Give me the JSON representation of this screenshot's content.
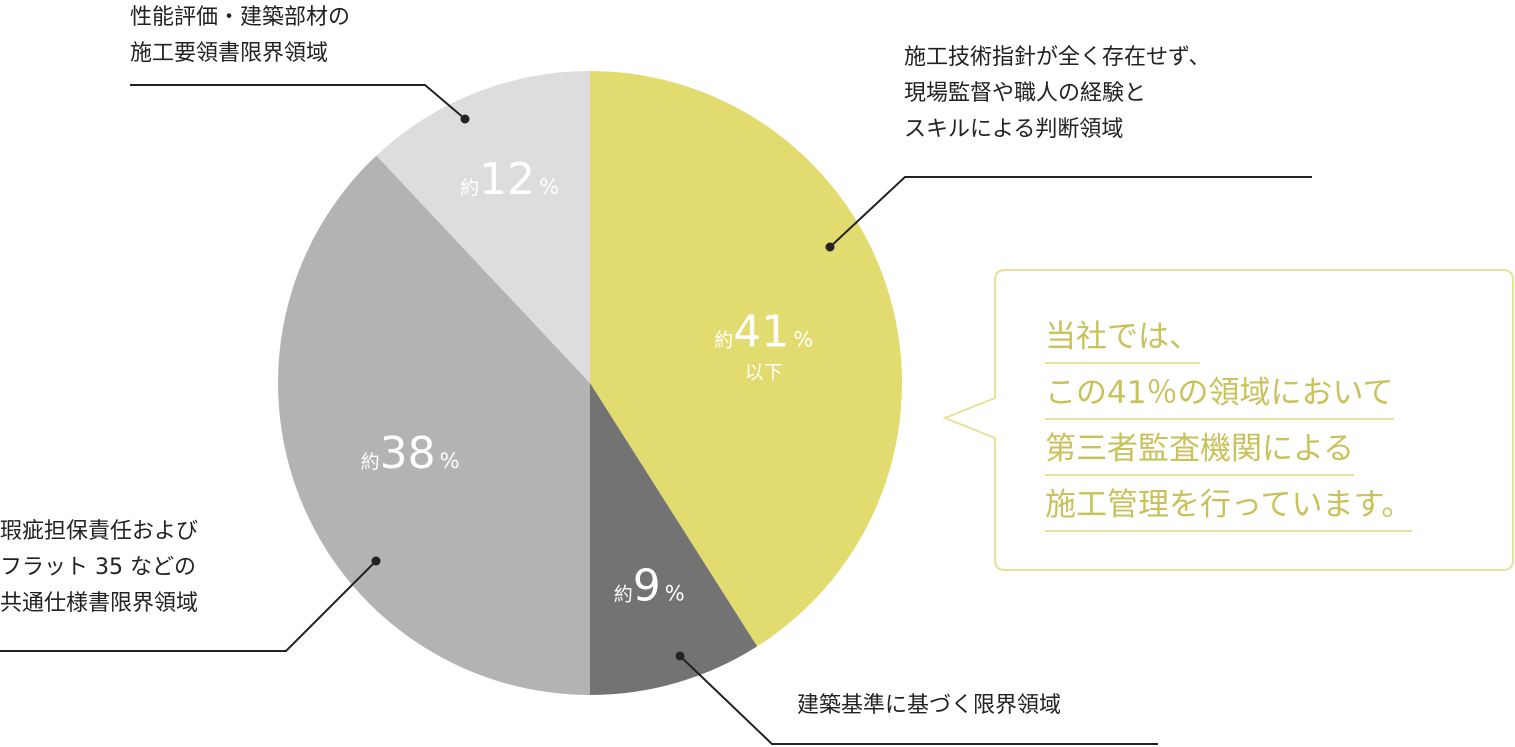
{
  "chart_data": {
    "type": "pie",
    "slices": [
      {
        "prefix": "約",
        "value": 41,
        "unit": "%",
        "sub": "以下",
        "color": "#e2dc70"
      },
      {
        "prefix": "約",
        "value": 9,
        "unit": "%",
        "sub": "",
        "color": "#737373"
      },
      {
        "prefix": "約",
        "value": 38,
        "unit": "%",
        "sub": "",
        "color": "#b3b3b3"
      },
      {
        "prefix": "約",
        "value": 12,
        "unit": "%",
        "sub": "",
        "color": "#dcdddc"
      }
    ],
    "start": "12 o'clock",
    "direction": "clockwise",
    "legend": "none"
  },
  "callouts": [
    {
      "lines": [
        "施工技術指針が全く存在せず、",
        "現場監督や職人の経験と",
        "スキルによる判断領域"
      ]
    },
    {
      "lines": [
        "建築基準に基づく限界領域"
      ]
    },
    {
      "lines": [
        "瑕疵担保責任および",
        "フラット 35 などの",
        "共通仕様書限界領域"
      ]
    },
    {
      "lines": [
        "性能評価・建築部材の",
        "施工要領書限界領域"
      ]
    }
  ],
  "note": {
    "lines": [
      "当社では、",
      "この41％の領域において",
      "第三者監査機関による",
      "施工管理を行っています。"
    ],
    "text_color": "#c9c25a",
    "border_color": "#e6e196"
  }
}
